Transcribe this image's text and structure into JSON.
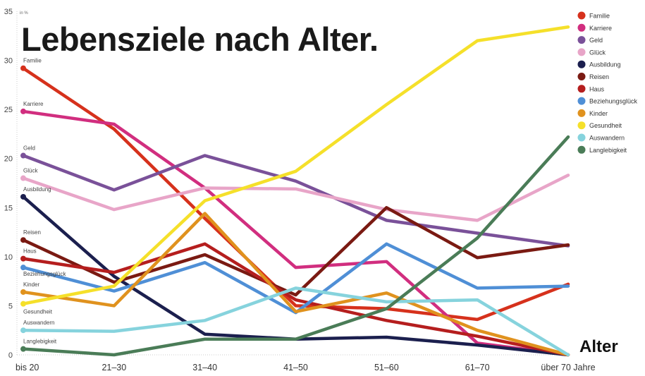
{
  "chart_data": {
    "type": "line",
    "title": "Lebensziele nach Alter.",
    "unit_label": "in %",
    "xlabel": "Alter",
    "ylabel": "",
    "categories": [
      "bis 20",
      "21–30",
      "31–40",
      "41–50",
      "51–60",
      "61–70",
      "über 70 Jahre"
    ],
    "ylim": [
      0,
      35
    ],
    "yticks": [
      0,
      5,
      10,
      15,
      20,
      25,
      30,
      35
    ],
    "grid": false,
    "legend_position": "right",
    "series": [
      {
        "name": "Familie",
        "color": "#d6311c",
        "values": [
          29.2,
          23.0,
          13.9,
          5.0,
          4.7,
          3.6,
          7.2
        ]
      },
      {
        "name": "Karriere",
        "color": "#d12e7f",
        "values": [
          24.8,
          23.5,
          17.0,
          8.9,
          9.5,
          1.2,
          0
        ]
      },
      {
        "name": "Geld",
        "color": "#7a5199",
        "values": [
          20.3,
          16.8,
          20.3,
          17.7,
          13.7,
          12.4,
          11.1
        ]
      },
      {
        "name": "Glück",
        "color": "#e8a5c8",
        "values": [
          18.0,
          14.8,
          17.0,
          16.9,
          14.8,
          13.7,
          18.3
        ]
      },
      {
        "name": "Ausbildung",
        "color": "#1b1f4e",
        "values": [
          16.1,
          8.0,
          2.1,
          1.6,
          1.8,
          1.0,
          0
        ]
      },
      {
        "name": "Reisen",
        "color": "#7a1a12",
        "values": [
          11.7,
          7.4,
          10.2,
          6.1,
          15.0,
          9.9,
          11.2
        ]
      },
      {
        "name": "Haus",
        "color": "#b51e1e",
        "values": [
          9.8,
          8.4,
          11.3,
          5.6,
          3.5,
          1.9,
          0
        ]
      },
      {
        "name": "Beziehungsglück",
        "color": "#4f8fd6",
        "values": [
          8.9,
          6.5,
          9.4,
          4.3,
          11.3,
          6.8,
          7.0
        ]
      },
      {
        "name": "Kinder",
        "color": "#e0921e",
        "values": [
          6.4,
          5.0,
          14.4,
          4.4,
          6.3,
          2.5,
          0
        ]
      },
      {
        "name": "Gesundheit",
        "color": "#f5e02a",
        "values": [
          5.2,
          7.0,
          15.7,
          18.7,
          25.5,
          32.0,
          33.4
        ]
      },
      {
        "name": "Auswandern",
        "color": "#86d3dd",
        "values": [
          2.5,
          2.4,
          3.5,
          6.8,
          5.4,
          5.6,
          0
        ]
      },
      {
        "name": "Langlebigkeit",
        "color": "#4a7c57",
        "values": [
          0.6,
          0.0,
          1.6,
          1.6,
          4.7,
          11.9,
          22.2
        ]
      }
    ]
  }
}
